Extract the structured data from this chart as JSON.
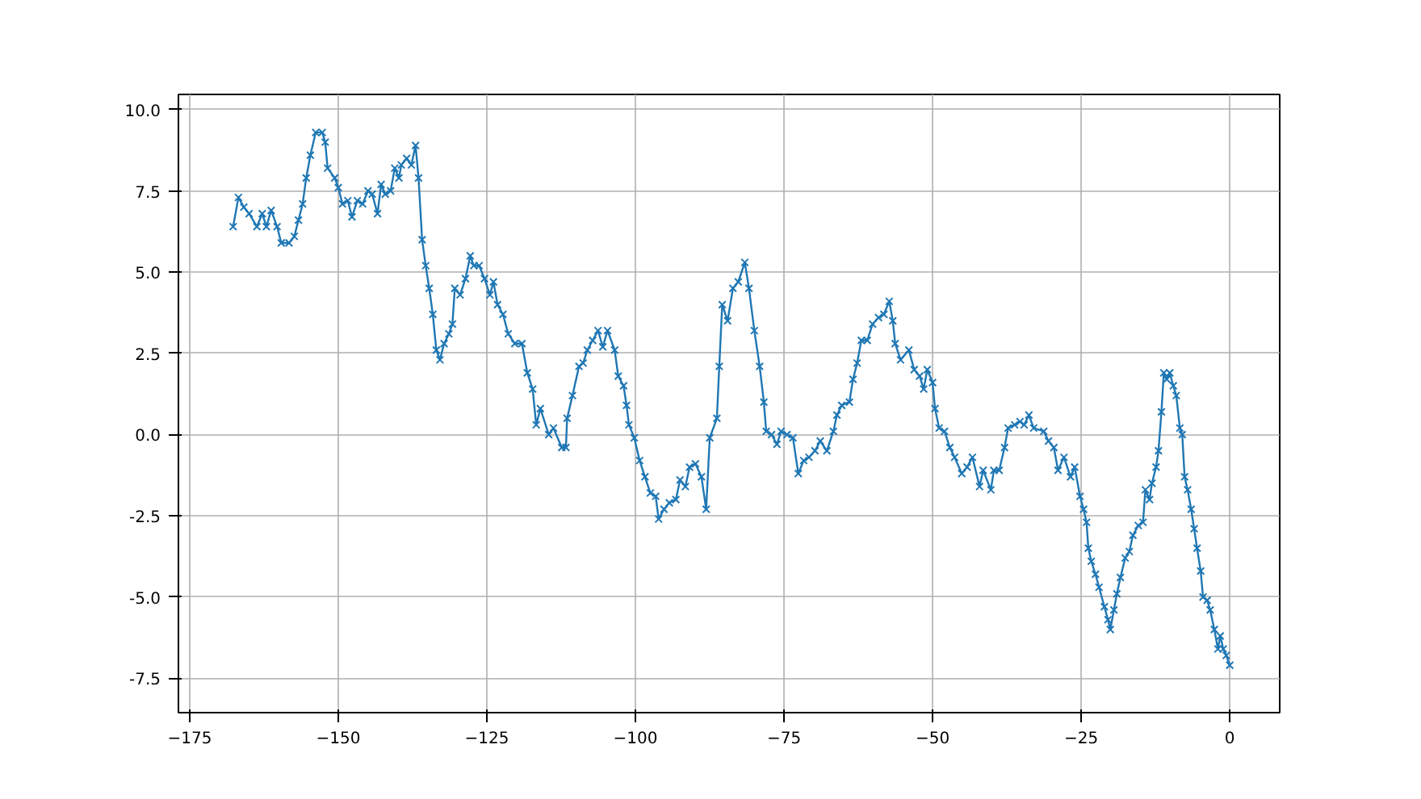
{
  "chart_data": {
    "type": "line",
    "xlim": [
      -176.9,
      8.4
    ],
    "ylim": [
      -8.56,
      10.47
    ],
    "xticks": [
      -175,
      -150,
      -125,
      -100,
      -75,
      -50,
      -25,
      0
    ],
    "yticks": [
      {
        "value": -7.5,
        "label": "-7.5"
      },
      {
        "value": -5,
        "label": "-5.0"
      },
      {
        "value": -2.5,
        "label": "-2.5"
      },
      {
        "value": 0,
        "label": "0.0"
      },
      {
        "value": 2.5,
        "label": "2.5"
      },
      {
        "value": 5,
        "label": "5.0"
      },
      {
        "value": 7.5,
        "label": "7.5"
      },
      {
        "value": 10,
        "label": "10.0"
      }
    ],
    "grid": true,
    "marker": "cross",
    "line_style": "solid",
    "series": [
      {
        "color": "#1f77b4",
        "x": [
          -167.7,
          -166.8,
          -165.9,
          -165.0,
          -163.7,
          -162.8,
          -162.1,
          -161.3,
          -160.3,
          -159.6,
          -158.3,
          -157.4,
          -156.7,
          -156.0,
          -155.4,
          -154.7,
          -153.8,
          -152.7,
          -152.2,
          -151.8,
          -150.6,
          -150.0,
          -149.3,
          -148.4,
          -147.7,
          -146.8,
          -145.9,
          -145.0,
          -144.3,
          -143.4,
          -142.8,
          -142.1,
          -141.2,
          -140.5,
          -139.8,
          -139.4,
          -138.5,
          -137.7,
          -137.0,
          -136.5,
          -135.9,
          -135.3,
          -134.7,
          -134.1,
          -133.5,
          -132.9,
          -132.2,
          -131.4,
          -130.8,
          -130.4,
          -129.5,
          -128.6,
          -127.8,
          -127.2,
          -126.3,
          -125.4,
          -124.5,
          -123.9,
          -123.2,
          -122.3,
          -121.4,
          -120.3,
          -119.1,
          -118.2,
          -117.3,
          -116.7,
          -116.0,
          -114.6,
          -113.8,
          -112.4,
          -111.7,
          -111.5,
          -110.6,
          -109.5,
          -108.8,
          -108.1,
          -107.2,
          -106.3,
          -105.5,
          -104.7,
          -103.5,
          -102.9,
          -102.0,
          -101.5,
          -101.1,
          -100.2,
          -99.3,
          -98.4,
          -97.5,
          -96.6,
          -96.1,
          -95.2,
          -94.3,
          -93.2,
          -92.5,
          -91.6,
          -90.9,
          -89.9,
          -88.9,
          -88.1,
          -87.5,
          -86.3,
          -85.9,
          -85.4,
          -84.5,
          -83.6,
          -82.7,
          -81.6,
          -80.9,
          -80.0,
          -79.1,
          -78.4,
          -78.0,
          -77.1,
          -76.2,
          -75.5,
          -74.5,
          -73.5,
          -72.6,
          -71.7,
          -70.8,
          -69.8,
          -68.9,
          -67.8,
          -66.7,
          -66.1,
          -65.3,
          -64.0,
          -63.4,
          -62.7,
          -62.0,
          -61.0,
          -60.1,
          -59.1,
          -58.2,
          -57.3,
          -56.7,
          -56.3,
          -55.4,
          -54.0,
          -53.1,
          -52.2,
          -51.5,
          -50.9,
          -50.0,
          -49.6,
          -48.9,
          -48.0,
          -47.1,
          -46.3,
          -45.1,
          -44.2,
          -43.3,
          -42.1,
          -41.5,
          -40.2,
          -39.7,
          -38.8,
          -37.9,
          -37.3,
          -36.2,
          -35.3,
          -34.6,
          -33.8,
          -33.0,
          -31.3,
          -30.5,
          -29.6,
          -28.9,
          -27.9,
          -26.8,
          -26.1,
          -25.2,
          -24.6,
          -24.1,
          -23.8,
          -23.3,
          -22.6,
          -22.0,
          -21.1,
          -20.5,
          -20.1,
          -19.5,
          -19.0,
          -18.4,
          -17.6,
          -16.9,
          -16.3,
          -15.4,
          -14.6,
          -14.2,
          -13.5,
          -13.1,
          -12.4,
          -12.0,
          -11.5,
          -11.1,
          -10.6,
          -10.1,
          -9.5,
          -9.0,
          -8.4,
          -8.0,
          -7.6,
          -7.1,
          -6.5,
          -6.0,
          -5.5,
          -4.9,
          -4.5,
          -3.8,
          -3.3,
          -2.6,
          -2.0,
          -1.6,
          -1.1,
          -0.6,
          0.0
        ],
        "values": [
          6.4,
          7.3,
          7.0,
          6.8,
          6.4,
          6.8,
          6.4,
          6.9,
          6.4,
          5.9,
          5.9,
          6.1,
          6.6,
          7.1,
          7.9,
          8.6,
          9.3,
          9.3,
          9.0,
          8.2,
          7.9,
          7.6,
          7.1,
          7.2,
          6.7,
          7.2,
          7.1,
          7.5,
          7.4,
          6.8,
          7.7,
          7.4,
          7.5,
          8.2,
          7.9,
          8.3,
          8.5,
          8.3,
          8.9,
          7.9,
          6.0,
          5.2,
          4.5,
          3.7,
          2.6,
          2.3,
          2.8,
          3.1,
          3.4,
          4.5,
          4.3,
          4.8,
          5.5,
          5.2,
          5.2,
          4.8,
          4.3,
          4.7,
          4.0,
          3.7,
          3.1,
          2.8,
          2.8,
          1.9,
          1.4,
          0.3,
          0.8,
          0.0,
          0.2,
          -0.4,
          -0.4,
          0.5,
          1.2,
          2.1,
          2.2,
          2.6,
          2.9,
          3.2,
          2.7,
          3.2,
          2.6,
          1.8,
          1.5,
          0.9,
          0.3,
          -0.1,
          -0.8,
          -1.3,
          -1.8,
          -1.9,
          -2.6,
          -2.3,
          -2.1,
          -2.0,
          -1.4,
          -1.6,
          -1.0,
          -0.9,
          -1.3,
          -2.3,
          -0.1,
          0.5,
          2.1,
          4.0,
          3.5,
          4.5,
          4.7,
          5.3,
          4.5,
          3.2,
          2.1,
          1.0,
          0.1,
          0.0,
          -0.3,
          0.1,
          0.0,
          -0.1,
          -1.2,
          -0.8,
          -0.7,
          -0.5,
          -0.2,
          -0.5,
          0.1,
          0.6,
          0.9,
          1.0,
          1.7,
          2.2,
          2.9,
          2.9,
          3.4,
          3.6,
          3.7,
          4.1,
          3.5,
          2.8,
          2.3,
          2.6,
          2.0,
          1.8,
          1.4,
          2.0,
          1.6,
          0.8,
          0.2,
          0.1,
          -0.4,
          -0.7,
          -1.2,
          -1.0,
          -0.7,
          -1.6,
          -1.1,
          -1.7,
          -1.1,
          -1.1,
          -0.4,
          0.2,
          0.3,
          0.4,
          0.3,
          0.6,
          0.2,
          0.1,
          -0.2,
          -0.4,
          -1.1,
          -0.7,
          -1.3,
          -1.0,
          -1.9,
          -2.3,
          -2.7,
          -3.5,
          -3.9,
          -4.3,
          -4.7,
          -5.3,
          -5.7,
          -6.0,
          -5.4,
          -4.9,
          -4.4,
          -3.8,
          -3.6,
          -3.1,
          -2.8,
          -2.7,
          -1.7,
          -2.0,
          -1.5,
          -1.0,
          -0.5,
          0.7,
          1.9,
          1.7,
          1.9,
          1.5,
          1.2,
          0.2,
          0.0,
          -1.3,
          -1.7,
          -2.3,
          -2.9,
          -3.5,
          -4.2,
          -5.0,
          -5.1,
          -5.4,
          -6.0,
          -6.6,
          -6.2,
          -6.6,
          -6.8,
          -7.1
        ]
      }
    ]
  }
}
